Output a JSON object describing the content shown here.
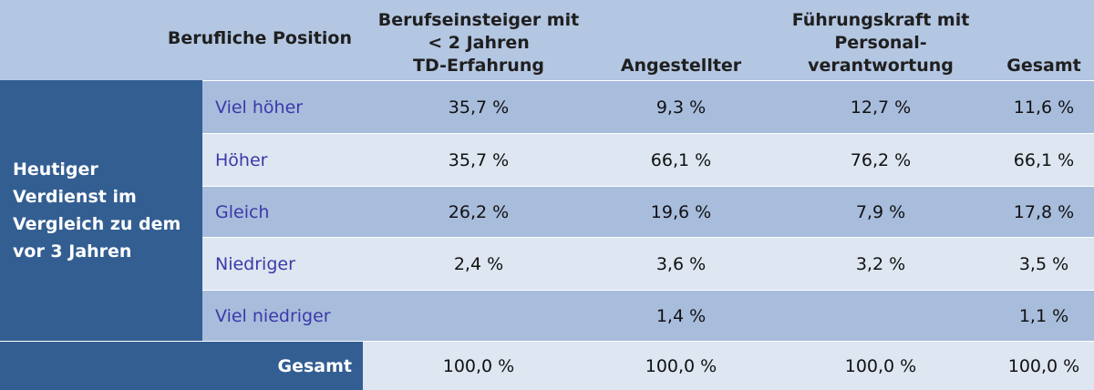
{
  "chart_data": {
    "type": "table",
    "corner_label": "Berufliche Position",
    "columns": [
      [
        "Berufseinsteiger mit",
        "< 2 Jahren",
        "TD-Erfahrung"
      ],
      [
        "Angestellter"
      ],
      [
        "Führungskraft mit",
        "Personal-",
        "verantwortung"
      ],
      [
        "Gesamt"
      ]
    ],
    "row_group_label": "Heutiger Verdienst im Vergleich zu dem vor 3 Jahren",
    "rows": [
      {
        "label": "Viel höher",
        "values": [
          "35,7 %",
          "9,3 %",
          "12,7 %",
          "11,6 %"
        ]
      },
      {
        "label": "Höher",
        "values": [
          "35,7 %",
          "66,1 %",
          "76,2 %",
          "66,1 %"
        ]
      },
      {
        "label": "Gleich",
        "values": [
          "26,2 %",
          "19,6 %",
          "7,9 %",
          "17,8 %"
        ]
      },
      {
        "label": "Niedriger",
        "values": [
          "2,4 %",
          "3,6 %",
          "3,2 %",
          "3,5 %"
        ]
      },
      {
        "label": "Viel niedriger",
        "values": [
          "",
          "1,4 %",
          "",
          "1,1 %"
        ]
      }
    ],
    "total_row": {
      "label": "Gesamt",
      "values": [
        "100,0 %",
        "100,0 %",
        "100,0 %",
        "100,0 %"
      ]
    }
  },
  "colors": {
    "header_bg": "#b3c6e2",
    "row_head_bg": "#335e92",
    "row_dark": "#a8bcdc",
    "row_light": "#dde6f1",
    "label_text": "#3a3aa8"
  }
}
